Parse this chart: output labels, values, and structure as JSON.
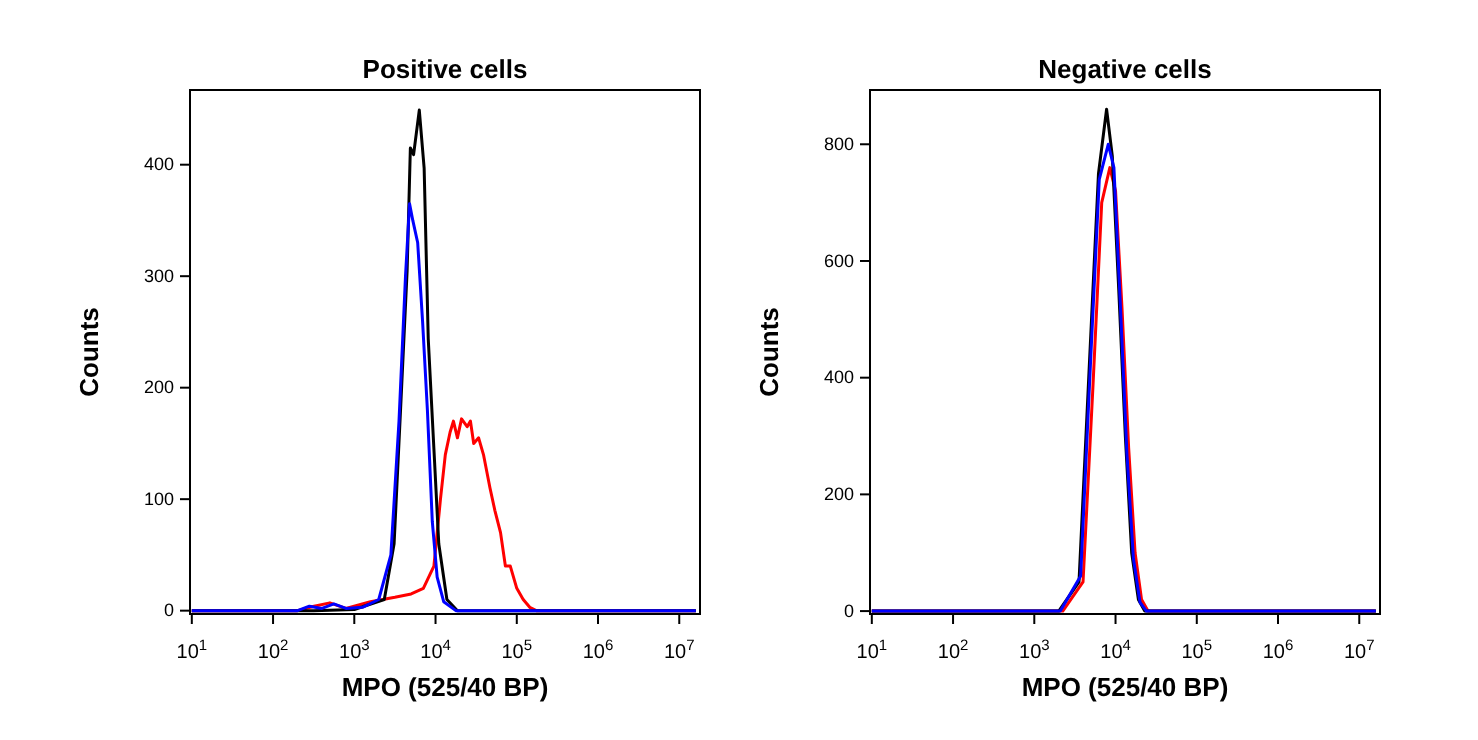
{
  "chart_data": [
    {
      "type": "line",
      "title": "Positive cells",
      "xlabel": "MPO (525/40 BP)",
      "ylabel": "Counts",
      "log": "x",
      "grid": false,
      "marker": "none",
      "line_style": "solid",
      "xlim": [
        9.5,
        18000000
      ],
      "xticks": [
        {
          "value": 10,
          "label": "10$^{1}$"
        },
        {
          "value": 100,
          "label": "10$^{2}$"
        },
        {
          "value": 1000,
          "label": "10$^{3}$"
        },
        {
          "value": 10000,
          "label": "10$^{4}$"
        },
        {
          "value": 100000,
          "label": "10$^{5}$"
        },
        {
          "value": 1000000,
          "label": "10$^{6}$"
        },
        {
          "value": 10000000,
          "label": "10$^{7}$"
        }
      ],
      "ylim": [
        -3,
        467
      ],
      "yticks": [
        0,
        100,
        200,
        300,
        400
      ],
      "series": [
        {
          "color": "#ff0000",
          "x": [
            10,
            200,
            320,
            500,
            790,
            1580,
            3160,
            5010,
            7080,
            9550,
            11500,
            13200,
            15100,
            16600,
            18600,
            20900,
            24500,
            26900,
            29500,
            33900,
            38900,
            46800,
            53700,
            63100,
            72400,
            83200,
            100000,
            120000,
            144500,
            173800,
            16000000
          ],
          "values": [
            0,
            0,
            4,
            7,
            2,
            8,
            12,
            15,
            20,
            40,
            100,
            140,
            160,
            170,
            155,
            172,
            165,
            170,
            150,
            155,
            140,
            110,
            90,
            70,
            40,
            40,
            20,
            10,
            3,
            0,
            0
          ]
        },
        {
          "color": "#000000",
          "x": [
            10,
            316,
            1000,
            2340,
            3090,
            3720,
            4470,
            4900,
            5370,
            6310,
            7240,
            8130,
            9550,
            10960,
            13800,
            18600,
            16000000
          ],
          "values": [
            0,
            0,
            1,
            10,
            60,
            182,
            305,
            415,
            409,
            449,
            397,
            244,
            145,
            60,
            10,
            0,
            0
          ]
        },
        {
          "color": "#0000ff",
          "x": [
            10,
            200,
            280,
            400,
            560,
            790,
            1260,
            2000,
            2820,
            3550,
            4270,
            4790,
            5250,
            6030,
            6920,
            7940,
            9120,
            10470,
            12600,
            17800,
            16000000
          ],
          "values": [
            0,
            0,
            4,
            2,
            6,
            2,
            3,
            10,
            50,
            170,
            300,
            365,
            350,
            330,
            260,
            180,
            80,
            30,
            8,
            0,
            0
          ]
        }
      ]
    },
    {
      "type": "line",
      "title": "Negative cells",
      "xlabel": "MPO (525/40 BP)",
      "ylabel": "Counts",
      "log": "x",
      "grid": false,
      "marker": "none",
      "line_style": "solid",
      "xlim": [
        9.5,
        18000000
      ],
      "xticks": [
        {
          "value": 10,
          "label": "10$^{1}$"
        },
        {
          "value": 100,
          "label": "10$^{2}$"
        },
        {
          "value": 1000,
          "label": "10$^{3}$"
        },
        {
          "value": 10000,
          "label": "10$^{4}$"
        },
        {
          "value": 100000,
          "label": "10$^{5}$"
        },
        {
          "value": 1000000,
          "label": "10$^{6}$"
        },
        {
          "value": 10000000,
          "label": "10$^{7}$"
        }
      ],
      "ylim": [
        -5,
        893
      ],
      "yticks": [
        0,
        200,
        400,
        600,
        800
      ],
      "series": [
        {
          "color": "#ff0000",
          "x": [
            10,
            2240,
            3980,
            5250,
            6760,
            8510,
            10000,
            12000,
            14500,
            17400,
            20900,
            25100,
            16000000
          ],
          "values": [
            0,
            0,
            50,
            380,
            700,
            760,
            720,
            520,
            280,
            100,
            20,
            0,
            0
          ]
        },
        {
          "color": "#000000",
          "x": [
            10,
            2000,
            3550,
            4680,
            6170,
            7760,
            9120,
            10960,
            13200,
            15800,
            19100,
            22900,
            16000000
          ],
          "values": [
            0,
            0,
            50,
            400,
            750,
            860,
            780,
            550,
            300,
            100,
            20,
            0,
            0
          ]
        },
        {
          "color": "#0000ff",
          "x": [
            10,
            2090,
            3720,
            4900,
            6310,
            8130,
            9550,
            11500,
            13800,
            16600,
            20000,
            24000,
            16000000
          ],
          "values": [
            0,
            0,
            60,
            420,
            740,
            800,
            760,
            520,
            270,
            90,
            15,
            0,
            0
          ]
        }
      ]
    }
  ]
}
